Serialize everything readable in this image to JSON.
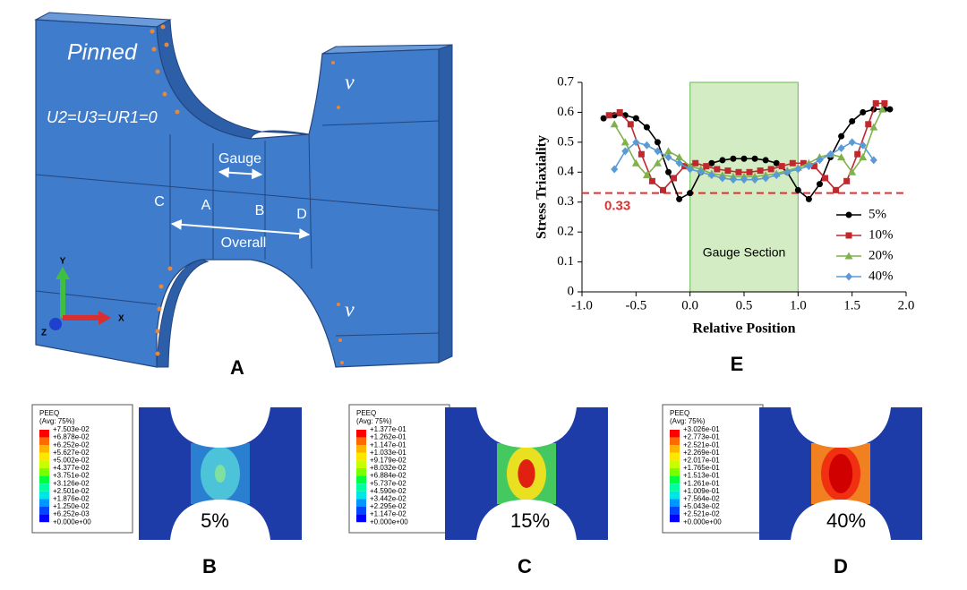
{
  "panel_a": {
    "label": "A",
    "boundary": "Pinned",
    "constraint": "U2=U3=UR1=0",
    "velocity_top": "v",
    "velocity_bottom": "v",
    "gauge": "Gauge",
    "overall": "Overall",
    "points": [
      "C",
      "A",
      "B",
      "D"
    ],
    "axes": [
      "Y",
      "X",
      "Z"
    ]
  },
  "chart_data": {
    "type": "line",
    "panel_label": "E",
    "xlabel": "Relative Position",
    "ylabel": "Stress Triaxiality",
    "xlim": [
      -1,
      2
    ],
    "xticks": [
      {
        "value": -1,
        "label": "-1.0"
      },
      {
        "value": -0.5,
        "label": "-0.5"
      },
      {
        "value": 0,
        "label": "0.0"
      },
      0.5,
      {
        "value": 1,
        "label": "1.0"
      },
      1.5,
      {
        "value": 2,
        "label": "2.0"
      }
    ],
    "ylim": [
      0,
      0.7
    ],
    "yticks": [
      0,
      0.1,
      0.2,
      0.3,
      0.4,
      0.5,
      0.6,
      0.7
    ],
    "reference_line": {
      "value": 0.33,
      "color": "#e03030"
    },
    "shaded_region": {
      "x": [
        0,
        1
      ],
      "label": "Gauge Section",
      "color": "#d4ecc4"
    },
    "legend": "right",
    "series": [
      {
        "name": "5%",
        "color": "#000000",
        "marker": "circle",
        "x": [
          -0.8,
          -0.7,
          -0.6,
          -0.5,
          -0.4,
          -0.3,
          -0.2,
          -0.1,
          0,
          0.1,
          0.2,
          0.3,
          0.4,
          0.5,
          0.6,
          0.7,
          0.8,
          0.9,
          1.0,
          1.1,
          1.2,
          1.3,
          1.4,
          1.5,
          1.6,
          1.7,
          1.8,
          1.85
        ],
        "values": [
          0.58,
          0.59,
          0.59,
          0.58,
          0.55,
          0.5,
          0.4,
          0.31,
          0.33,
          0.4,
          0.43,
          0.44,
          0.445,
          0.445,
          0.445,
          0.44,
          0.43,
          0.4,
          0.34,
          0.31,
          0.36,
          0.45,
          0.52,
          0.57,
          0.6,
          0.61,
          0.61,
          0.61
        ]
      },
      {
        "name": "10%",
        "color": "#c0282d",
        "marker": "square",
        "x": [
          -0.75,
          -0.65,
          -0.55,
          -0.45,
          -0.35,
          -0.25,
          -0.15,
          -0.05,
          0.05,
          0.15,
          0.25,
          0.35,
          0.45,
          0.55,
          0.65,
          0.75,
          0.85,
          0.95,
          1.05,
          1.15,
          1.25,
          1.35,
          1.45,
          1.55,
          1.65,
          1.72,
          1.8
        ],
        "values": [
          0.59,
          0.6,
          0.56,
          0.46,
          0.37,
          0.34,
          0.38,
          0.42,
          0.43,
          0.42,
          0.41,
          0.405,
          0.4,
          0.4,
          0.405,
          0.41,
          0.42,
          0.43,
          0.43,
          0.42,
          0.38,
          0.34,
          0.37,
          0.46,
          0.56,
          0.63,
          0.63
        ]
      },
      {
        "name": "20%",
        "color": "#7fb24a",
        "marker": "triangle",
        "x": [
          -0.7,
          -0.6,
          -0.5,
          -0.4,
          -0.3,
          -0.2,
          -0.1,
          0,
          0.1,
          0.2,
          0.3,
          0.4,
          0.5,
          0.6,
          0.7,
          0.8,
          0.9,
          1.0,
          1.1,
          1.2,
          1.3,
          1.4,
          1.5,
          1.6,
          1.7,
          1.78
        ],
        "values": [
          0.56,
          0.5,
          0.43,
          0.39,
          0.43,
          0.47,
          0.45,
          0.42,
          0.41,
          0.395,
          0.39,
          0.385,
          0.385,
          0.385,
          0.39,
          0.395,
          0.405,
          0.415,
          0.43,
          0.45,
          0.46,
          0.45,
          0.4,
          0.45,
          0.55,
          0.61
        ]
      },
      {
        "name": "40%",
        "color": "#5b9bd5",
        "marker": "diamond",
        "x": [
          -0.7,
          -0.6,
          -0.5,
          -0.4,
          -0.3,
          -0.2,
          -0.1,
          0,
          0.1,
          0.2,
          0.3,
          0.4,
          0.5,
          0.6,
          0.7,
          0.8,
          0.9,
          1.0,
          1.1,
          1.2,
          1.3,
          1.4,
          1.5,
          1.6,
          1.7
        ],
        "values": [
          0.41,
          0.47,
          0.5,
          0.49,
          0.47,
          0.45,
          0.43,
          0.41,
          0.4,
          0.39,
          0.38,
          0.375,
          0.375,
          0.375,
          0.38,
          0.39,
          0.4,
          0.41,
          0.42,
          0.44,
          0.46,
          0.48,
          0.5,
          0.49,
          0.44
        ]
      }
    ]
  },
  "contours": [
    {
      "label": "B",
      "strain": "5%",
      "legend_title": "PEEQ",
      "legend_subtitle": "(Avg: 75%)",
      "levels": [
        "+7.503e-02",
        "+6.878e-02",
        "+6.252e-02",
        "+5.627e-02",
        "+5.002e-02",
        "+4.377e-02",
        "+3.751e-02",
        "+3.126e-02",
        "+2.501e-02",
        "+1.876e-02",
        "+1.250e-02",
        "+6.252e-03",
        "+0.000e+00"
      ]
    },
    {
      "label": "C",
      "strain": "15%",
      "legend_title": "PEEQ",
      "legend_subtitle": "(Avg: 75%)",
      "levels": [
        "+1.377e-01",
        "+1.262e-01",
        "+1.147e-01",
        "+1.033e-01",
        "+9.179e-02",
        "+8.032e-02",
        "+6.884e-02",
        "+5.737e-02",
        "+4.590e-02",
        "+3.442e-02",
        "+2.295e-02",
        "+1.147e-02",
        "+0.000e+00"
      ]
    },
    {
      "label": "D",
      "strain": "40%",
      "legend_title": "PEEQ",
      "legend_subtitle": "(Avg: 75%)",
      "levels": [
        "+3.026e-01",
        "+2.773e-01",
        "+2.521e-01",
        "+2.269e-01",
        "+2.017e-01",
        "+1.765e-01",
        "+1.513e-01",
        "+1.261e-01",
        "+1.009e-01",
        "+7.564e-02",
        "+5.043e-02",
        "+2.521e-02",
        "+0.000e+00"
      ]
    }
  ]
}
